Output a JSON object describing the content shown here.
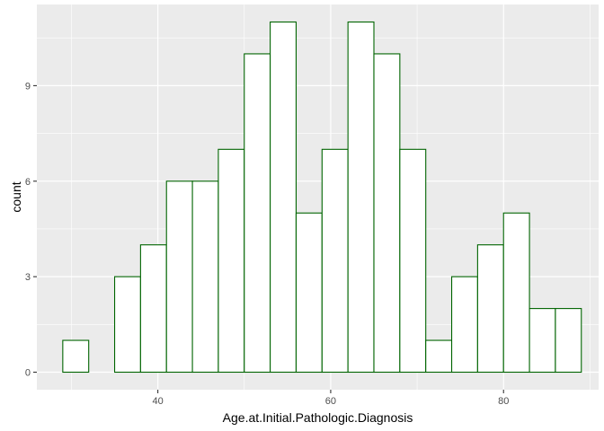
{
  "chart_data": {
    "type": "histogram",
    "title": "",
    "xlabel": "Age.at.Initial.Pathologic.Diagnosis",
    "ylabel": "count",
    "xlim": [
      26.0,
      91.0
    ],
    "ylim": [
      -0.55,
      11.55
    ],
    "bin_width": 3,
    "bin_start": 29,
    "counts": [
      1,
      0,
      3,
      4,
      6,
      6,
      7,
      10,
      11,
      5,
      7,
      11,
      10,
      7,
      1,
      3,
      4,
      5,
      2,
      2
    ],
    "x_ticks": [
      40,
      60,
      80
    ],
    "x_tick_labels": [
      "40",
      "60",
      "80"
    ],
    "y_ticks": [
      0,
      3,
      6,
      9
    ],
    "y_tick_labels": [
      "0",
      "3",
      "6",
      "9"
    ],
    "panel_background": "#ebebeb",
    "grid_color": "#ffffff",
    "bar_fill": "#ffffff",
    "bar_outline": "#006400",
    "tick_color": "#333333"
  }
}
